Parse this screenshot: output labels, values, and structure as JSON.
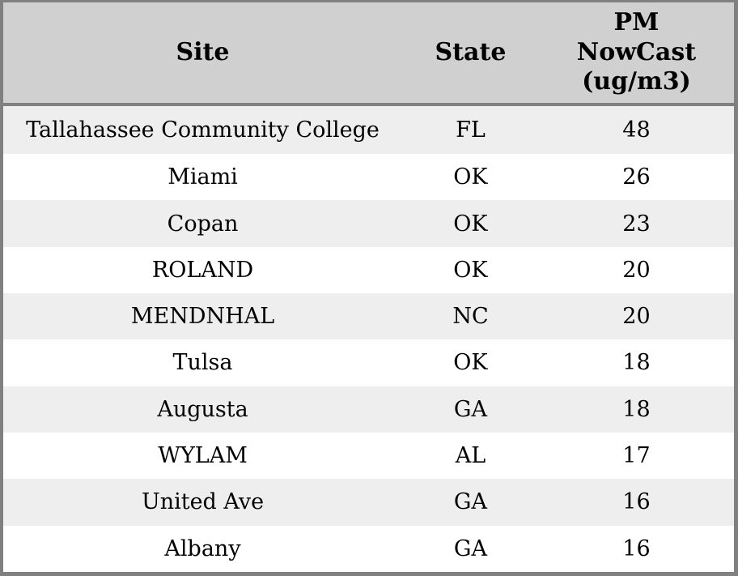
{
  "colors": {
    "header_bg": "#d0d0d0",
    "row_odd_bg": "#eeeeee",
    "row_even_bg": "#ffffff",
    "frame_border": "#808080",
    "text": "#000000"
  },
  "chart_data": {
    "type": "table",
    "columns": [
      {
        "id": "site",
        "label": "Site"
      },
      {
        "id": "state",
        "label": "State"
      },
      {
        "id": "pm_nowcast",
        "label": "PM NowCast (ug/m3)",
        "label_wrapped": "PM\nNowCast\n(ug/m3)",
        "unit": "ug/m3"
      }
    ],
    "rows": [
      {
        "site": "Tallahassee Community College",
        "state": "FL",
        "pm_nowcast": 48
      },
      {
        "site": "Miami",
        "state": "OK",
        "pm_nowcast": 26
      },
      {
        "site": "Copan",
        "state": "OK",
        "pm_nowcast": 23
      },
      {
        "site": "ROLAND",
        "state": "OK",
        "pm_nowcast": 20
      },
      {
        "site": "MENDNHAL",
        "state": "NC",
        "pm_nowcast": 20
      },
      {
        "site": "Tulsa",
        "state": "OK",
        "pm_nowcast": 18
      },
      {
        "site": "Augusta",
        "state": "GA",
        "pm_nowcast": 18
      },
      {
        "site": "WYLAM",
        "state": "AL",
        "pm_nowcast": 17
      },
      {
        "site": "United Ave",
        "state": "GA",
        "pm_nowcast": 16
      },
      {
        "site": "Albany",
        "state": "GA",
        "pm_nowcast": 16
      }
    ]
  }
}
